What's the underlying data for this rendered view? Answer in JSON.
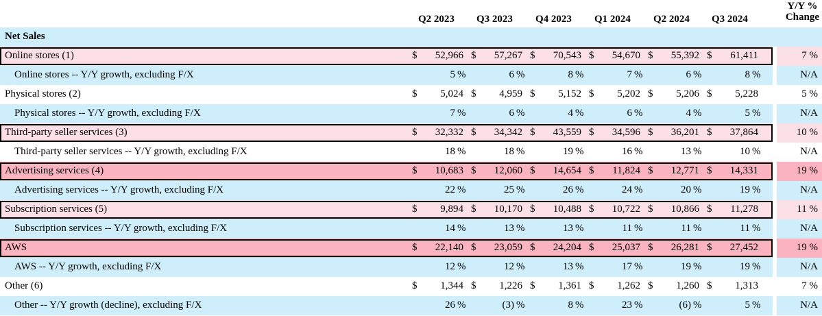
{
  "header": {
    "columns": [
      "Q2 2023",
      "Q3 2023",
      "Q4 2023",
      "Q1 2024",
      "Q2 2024",
      "Q3 2024"
    ],
    "yoy_line1": "Y/Y %",
    "yoy_line2": "Change"
  },
  "section_title": "Net Sales",
  "rows": [
    {
      "label": "Online stores (1)",
      "type": "dollar",
      "values": [
        "52,966",
        "57,267",
        "70,543",
        "54,670",
        "55,392",
        "61,411"
      ],
      "yoy": "7 %",
      "style": "pink",
      "boxed": true,
      "indent": false
    },
    {
      "label": "Online stores -- Y/Y growth, excluding F/X",
      "type": "pct",
      "values": [
        "5",
        "6",
        "8",
        "7",
        "6",
        "8"
      ],
      "yoy": "N/A",
      "style": "blue",
      "boxed": false,
      "indent": true
    },
    {
      "label": "Physical stores (2)",
      "type": "dollar",
      "values": [
        "5,024",
        "4,959",
        "5,152",
        "5,202",
        "5,206",
        "5,228"
      ],
      "yoy": "5 %",
      "style": "white",
      "boxed": false,
      "indent": false
    },
    {
      "label": "Physical stores -- Y/Y growth, excluding F/X",
      "type": "pct",
      "values": [
        "7",
        "6",
        "4",
        "6",
        "4",
        "5"
      ],
      "yoy": "N/A",
      "style": "blue",
      "boxed": false,
      "indent": true
    },
    {
      "label": "Third-party seller services (3)",
      "type": "dollar",
      "values": [
        "32,332",
        "34,342",
        "43,559",
        "34,596",
        "36,201",
        "37,864"
      ],
      "yoy": "10 %",
      "style": "pink",
      "boxed": true,
      "indent": false
    },
    {
      "label": "Third-party seller services -- Y/Y growth, excluding F/X",
      "type": "pct",
      "values": [
        "18",
        "18",
        "19",
        "16",
        "13",
        "10"
      ],
      "yoy": "N/A",
      "style": "white",
      "boxed": false,
      "indent": true
    },
    {
      "label": "Advertising services (4)",
      "type": "dollar",
      "values": [
        "10,683",
        "12,060",
        "14,654",
        "11,824",
        "12,771",
        "14,331"
      ],
      "yoy": "19 %",
      "style": "rose",
      "boxed": true,
      "indent": false
    },
    {
      "label": "Advertising services -- Y/Y growth, excluding F/X",
      "type": "pct",
      "values": [
        "22",
        "25",
        "26",
        "24",
        "20",
        "19"
      ],
      "yoy": "N/A",
      "style": "blue",
      "boxed": false,
      "indent": true
    },
    {
      "label": "Subscription services (5)",
      "type": "dollar",
      "values": [
        "9,894",
        "10,170",
        "10,488",
        "10,722",
        "10,866",
        "11,278"
      ],
      "yoy": "11 %",
      "style": "pink",
      "boxed": true,
      "indent": false
    },
    {
      "label": "Subscription services -- Y/Y growth, excluding F/X",
      "type": "pct",
      "values": [
        "14",
        "13",
        "13",
        "11",
        "11",
        "11"
      ],
      "yoy": "N/A",
      "style": "blue",
      "boxed": false,
      "indent": true
    },
    {
      "label": "AWS",
      "type": "dollar",
      "values": [
        "22,140",
        "23,059",
        "24,204",
        "25,037",
        "26,281",
        "27,452"
      ],
      "yoy": "19 %",
      "style": "rose",
      "boxed": true,
      "indent": false
    },
    {
      "label": "AWS -- Y/Y growth, excluding F/X",
      "type": "pct",
      "values": [
        "12",
        "12",
        "13",
        "17",
        "19",
        "19"
      ],
      "yoy": "N/A",
      "style": "blue",
      "boxed": false,
      "indent": true
    },
    {
      "label": "Other (6)",
      "type": "dollar",
      "values": [
        "1,344",
        "1,226",
        "1,361",
        "1,262",
        "1,260",
        "1,313"
      ],
      "yoy": "7 %",
      "style": "white",
      "boxed": false,
      "indent": false
    },
    {
      "label": "Other -- Y/Y growth (decline), excluding F/X",
      "type": "pct",
      "values": [
        "26",
        "(3)",
        "8",
        "23",
        "(6)",
        "5"
      ],
      "yoy": "N/A",
      "style": "blue",
      "boxed": false,
      "indent": true
    }
  ],
  "symbols": {
    "dollar": "$",
    "percent": "%"
  },
  "colors": {
    "blue": "#cfeefb",
    "pink": "#fde0e6",
    "rose": "#fbb3c0",
    "white": "#ffffff"
  }
}
